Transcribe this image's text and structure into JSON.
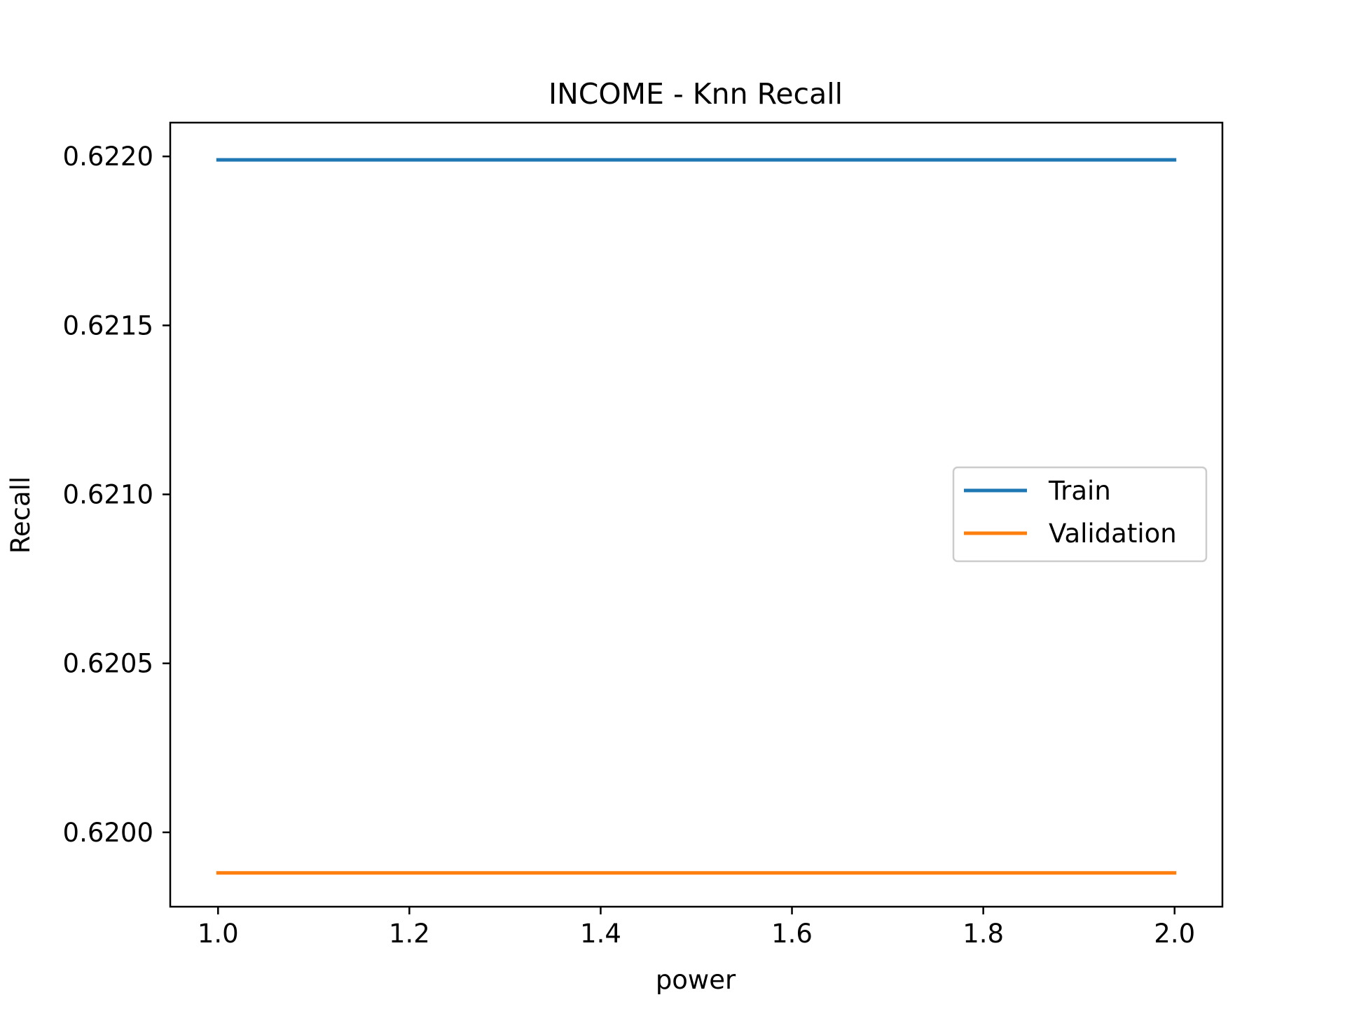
{
  "chart_data": {
    "type": "line",
    "title": "INCOME - Knn Recall",
    "xlabel": "power",
    "ylabel": "Recall",
    "xlim": [
      0.95,
      2.05
    ],
    "ylim": [
      0.61978,
      0.6221
    ],
    "xticks": [
      1.0,
      1.2,
      1.4,
      1.6,
      1.8,
      2.0
    ],
    "xtick_labels": [
      "1.0",
      "1.2",
      "1.4",
      "1.6",
      "1.8",
      "2.0"
    ],
    "yticks": [
      0.62,
      0.6205,
      0.621,
      0.6215,
      0.622
    ],
    "ytick_labels": [
      "0.6200",
      "0.6205",
      "0.6210",
      "0.6215",
      "0.6220"
    ],
    "grid": false,
    "legend_position": "center-right",
    "series": [
      {
        "name": "Train",
        "color": "#1f77b4",
        "x": [
          1.0,
          2.0
        ],
        "y": [
          0.62199,
          0.62199
        ]
      },
      {
        "name": "Validation",
        "color": "#ff7f0e",
        "x": [
          1.0,
          2.0
        ],
        "y": [
          0.61988,
          0.61988
        ]
      }
    ]
  }
}
